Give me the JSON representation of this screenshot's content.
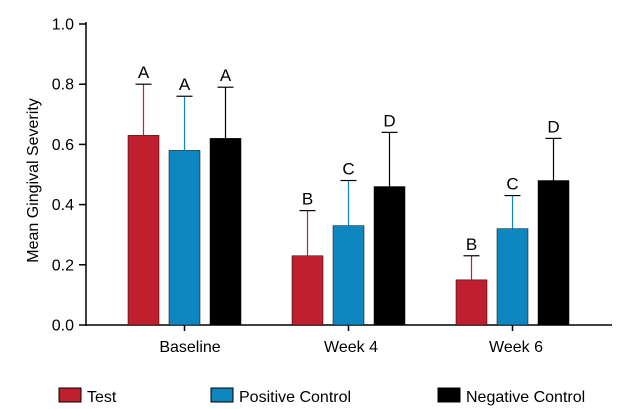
{
  "chart_data": {
    "type": "bar",
    "title": "",
    "xlabel": "",
    "ylabel": "Mean Gingival  Severity",
    "ylim": [
      0,
      1.0
    ],
    "yticks": [
      "0.0",
      "0.2",
      "0.4",
      "0.6",
      "0.8",
      "1.0"
    ],
    "grid": false,
    "legend_position": "bottom",
    "categories": [
      "Baseline",
      "Week 4",
      "Week 6"
    ],
    "series": [
      {
        "name": "Test",
        "color": "#c0202e",
        "values": [
          0.63,
          0.23,
          0.15
        ],
        "errors": [
          0.17,
          0.15,
          0.08
        ],
        "sig_labels": [
          "A",
          "B",
          "B"
        ]
      },
      {
        "name": "Positive Control",
        "color": "#0e86bf",
        "values": [
          0.58,
          0.33,
          0.32
        ],
        "errors": [
          0.18,
          0.15,
          0.11
        ],
        "sig_labels": [
          "A",
          "C",
          "C"
        ]
      },
      {
        "name": "Negative Control",
        "color": "#000000",
        "values": [
          0.62,
          0.46,
          0.48
        ],
        "errors": [
          0.17,
          0.18,
          0.14
        ],
        "sig_labels": [
          "A",
          "D",
          "D"
        ]
      }
    ]
  }
}
